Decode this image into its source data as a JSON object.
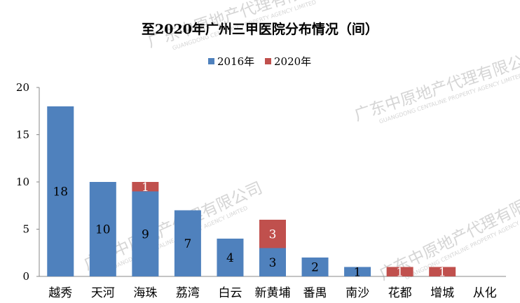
{
  "chart_data": {
    "type": "bar",
    "stacked": true,
    "title": "至2020年广州三甲医院分布情况（间）",
    "categories": [
      "越秀",
      "天河",
      "海珠",
      "荔湾",
      "白云",
      "新黄埔",
      "番禺",
      "南沙",
      "花都",
      "增城",
      "从化"
    ],
    "series": [
      {
        "name": "2016年",
        "color": "#4f81bd",
        "values": [
          18,
          10,
          9,
          7,
          4,
          3,
          2,
          1,
          0,
          0,
          0
        ]
      },
      {
        "name": "2020年",
        "color": "#c0504d",
        "values": [
          0,
          0,
          1,
          0,
          0,
          3,
          0,
          0,
          1,
          1,
          0
        ]
      }
    ],
    "ylim": [
      0,
      20
    ],
    "yticks": [
      0,
      5,
      10,
      15,
      20
    ],
    "grid": false,
    "legend_position": "top-center"
  },
  "watermark": {
    "text": "广东中原地产代理有限公司",
    "subtext": "GUANGDONG CENTALINE PROPERTY AGENCY LIMITED"
  }
}
